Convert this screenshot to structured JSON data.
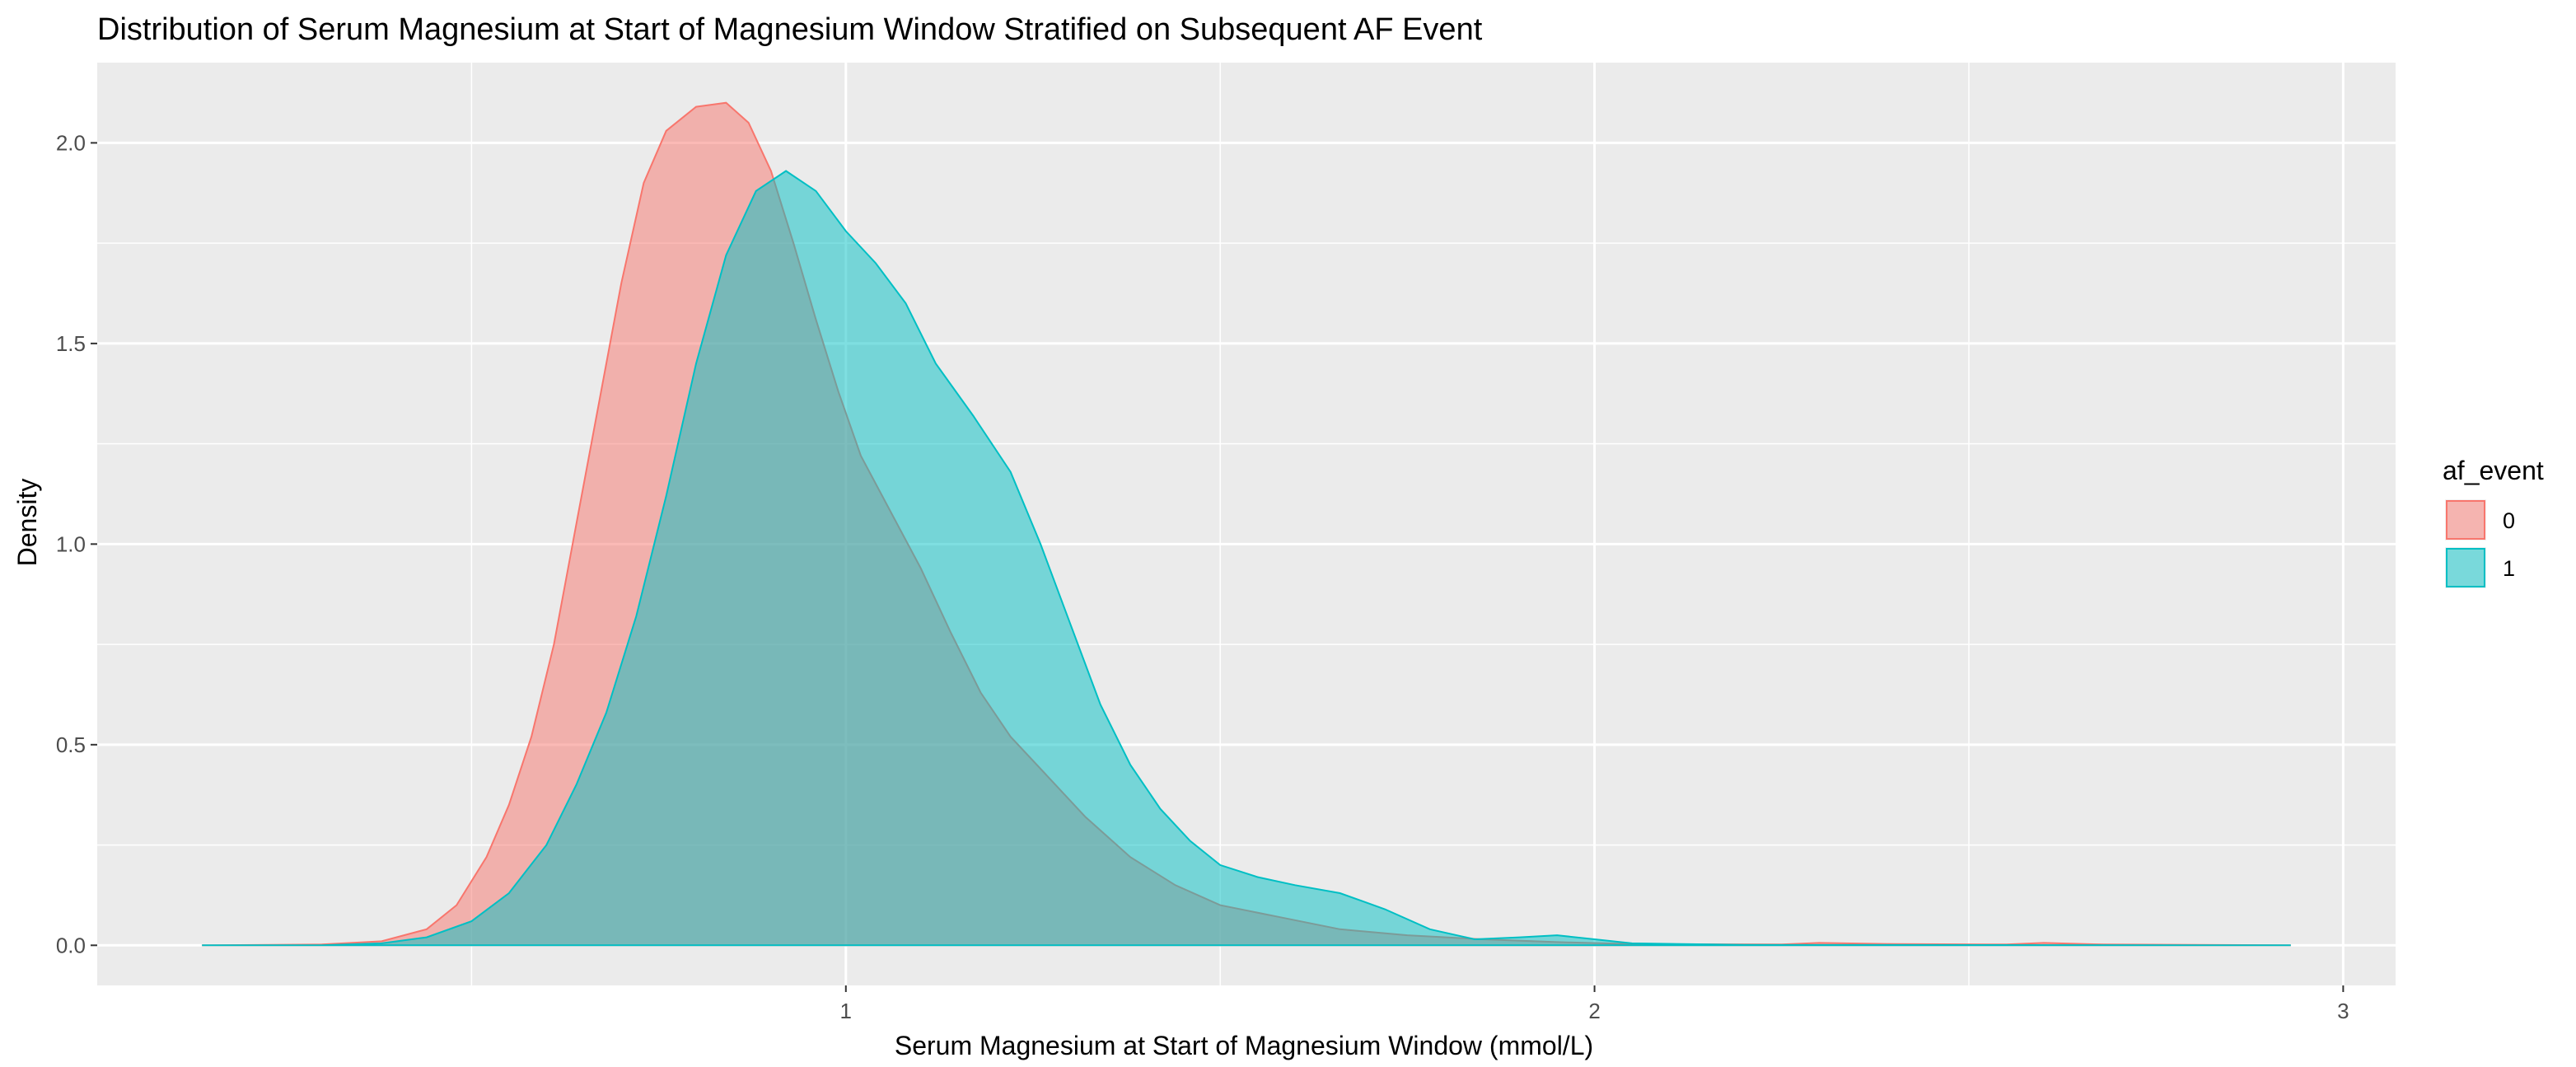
{
  "chart_data": {
    "type": "area",
    "title": "Distribution of Serum Magnesium at Start of Magnesium Window Stratified on Subsequent AF Event",
    "xlabel": "Serum Magnesium at Start of Magnesium Window (mmol/L)",
    "ylabel": "Density",
    "xlim": [
      0.0,
      3.07
    ],
    "ylim": [
      -0.1,
      2.2
    ],
    "xticks": [
      1,
      2,
      3
    ],
    "xtick_labels": [
      "1",
      "2",
      "3"
    ],
    "yticks": [
      0.0,
      0.5,
      1.0,
      1.5,
      2.0
    ],
    "ytick_labels": [
      "0.0",
      "0.5",
      "1.0",
      "1.5",
      "2.0"
    ],
    "grid": true,
    "background": "#ebebeb",
    "legend": {
      "title": "af_event",
      "position": "right"
    },
    "series": [
      {
        "name": "0",
        "color": "#f8766d",
        "points": [
          [
            0.14,
            0.0
          ],
          [
            0.3,
            0.002
          ],
          [
            0.38,
            0.01
          ],
          [
            0.44,
            0.04
          ],
          [
            0.48,
            0.1
          ],
          [
            0.52,
            0.22
          ],
          [
            0.55,
            0.35
          ],
          [
            0.58,
            0.52
          ],
          [
            0.61,
            0.75
          ],
          [
            0.64,
            1.05
          ],
          [
            0.67,
            1.35
          ],
          [
            0.7,
            1.65
          ],
          [
            0.73,
            1.9
          ],
          [
            0.76,
            2.03
          ],
          [
            0.8,
            2.09
          ],
          [
            0.84,
            2.1
          ],
          [
            0.87,
            2.05
          ],
          [
            0.9,
            1.93
          ],
          [
            0.93,
            1.75
          ],
          [
            0.96,
            1.56
          ],
          [
            0.99,
            1.38
          ],
          [
            1.02,
            1.22
          ],
          [
            1.06,
            1.08
          ],
          [
            1.1,
            0.94
          ],
          [
            1.14,
            0.78
          ],
          [
            1.18,
            0.63
          ],
          [
            1.22,
            0.52
          ],
          [
            1.27,
            0.42
          ],
          [
            1.32,
            0.32
          ],
          [
            1.38,
            0.22
          ],
          [
            1.44,
            0.15
          ],
          [
            1.5,
            0.1
          ],
          [
            1.58,
            0.07
          ],
          [
            1.66,
            0.04
          ],
          [
            1.75,
            0.025
          ],
          [
            1.85,
            0.015
          ],
          [
            1.95,
            0.008
          ],
          [
            2.05,
            0.003
          ],
          [
            2.25,
            0.002
          ],
          [
            2.3,
            0.006
          ],
          [
            2.4,
            0.003
          ],
          [
            2.55,
            0.002
          ],
          [
            2.6,
            0.006
          ],
          [
            2.68,
            0.002
          ],
          [
            2.93,
            0.0
          ]
        ]
      },
      {
        "name": "1",
        "color": "#00bfc4",
        "points": [
          [
            0.14,
            0.0
          ],
          [
            0.3,
            0.0
          ],
          [
            0.38,
            0.005
          ],
          [
            0.44,
            0.02
          ],
          [
            0.5,
            0.06
          ],
          [
            0.55,
            0.13
          ],
          [
            0.6,
            0.25
          ],
          [
            0.64,
            0.4
          ],
          [
            0.68,
            0.58
          ],
          [
            0.72,
            0.82
          ],
          [
            0.76,
            1.12
          ],
          [
            0.8,
            1.45
          ],
          [
            0.84,
            1.72
          ],
          [
            0.88,
            1.88
          ],
          [
            0.92,
            1.93
          ],
          [
            0.96,
            1.88
          ],
          [
            1.0,
            1.78
          ],
          [
            1.04,
            1.7
          ],
          [
            1.08,
            1.6
          ],
          [
            1.12,
            1.45
          ],
          [
            1.17,
            1.32
          ],
          [
            1.22,
            1.18
          ],
          [
            1.26,
            1.0
          ],
          [
            1.3,
            0.8
          ],
          [
            1.34,
            0.6
          ],
          [
            1.38,
            0.45
          ],
          [
            1.42,
            0.34
          ],
          [
            1.46,
            0.26
          ],
          [
            1.5,
            0.2
          ],
          [
            1.55,
            0.17
          ],
          [
            1.6,
            0.15
          ],
          [
            1.66,
            0.13
          ],
          [
            1.72,
            0.09
          ],
          [
            1.78,
            0.04
          ],
          [
            1.84,
            0.015
          ],
          [
            1.9,
            0.02
          ],
          [
            1.95,
            0.025
          ],
          [
            2.0,
            0.015
          ],
          [
            2.05,
            0.005
          ],
          [
            2.2,
            0.001
          ],
          [
            2.93,
            0.0
          ]
        ]
      }
    ]
  }
}
